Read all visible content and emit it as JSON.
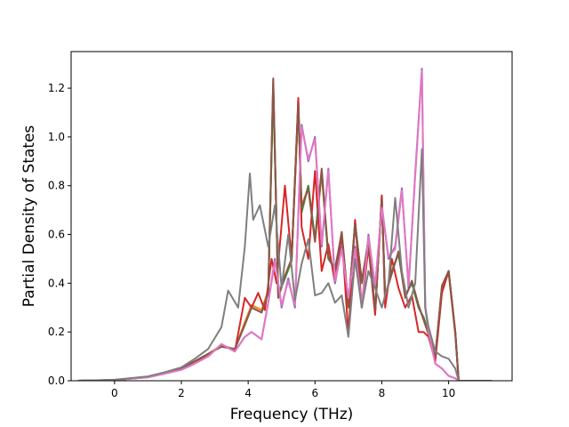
{
  "chart_data": {
    "type": "line",
    "xlabel": "Frequency (THz)",
    "ylabel": "Partial Density of States",
    "xlim": [
      -1.3,
      11.9
    ],
    "ylim": [
      0.0,
      1.35
    ],
    "xticks": [
      0,
      2,
      4,
      6,
      8,
      10
    ],
    "yticks": [
      0.0,
      0.2,
      0.4,
      0.6,
      0.8,
      1.0,
      1.2
    ],
    "xtick_labels": [
      "0",
      "2",
      "4",
      "6",
      "8",
      "10"
    ],
    "ytick_labels": [
      "0.0",
      "0.2",
      "0.4",
      "0.6",
      "0.8",
      "1.0",
      "1.2"
    ],
    "grid": false,
    "legend": "none",
    "series": [
      {
        "color": "#1f77b4",
        "x": [
          -1.1,
          0,
          1,
          1.5,
          2,
          2.4,
          2.8,
          3.2,
          3.6,
          3.9,
          4.1,
          4.4,
          4.6,
          4.75,
          4.9,
          5.1,
          5.3,
          5.5,
          5.6,
          5.8,
          6,
          6.2,
          6.4,
          6.6,
          6.8,
          7,
          7.2,
          7.4,
          7.6,
          7.8,
          8,
          8.1,
          8.3,
          8.5,
          8.7,
          8.9,
          9.1,
          9.25,
          9.4,
          9.6,
          9.8,
          10,
          10.2,
          10.3,
          11.3
        ],
        "y": [
          0,
          0.003,
          0.015,
          0.03,
          0.05,
          0.08,
          0.11,
          0.14,
          0.13,
          0.23,
          0.3,
          0.28,
          0.36,
          1.22,
          0.35,
          0.42,
          0.5,
          1.14,
          0.7,
          0.8,
          0.58,
          0.86,
          0.5,
          0.46,
          0.6,
          0.3,
          0.65,
          0.4,
          0.58,
          0.28,
          0.75,
          0.34,
          0.45,
          0.52,
          0.35,
          0.4,
          0.3,
          0.26,
          0.2,
          0.1,
          0.38,
          0.45,
          0.2,
          0,
          0
        ]
      },
      {
        "color": "#ff7f0e",
        "x": [
          -1.1,
          0,
          1,
          1.5,
          2,
          2.4,
          2.8,
          3.2,
          3.6,
          3.9,
          4.1,
          4.4,
          4.6,
          4.75,
          4.9,
          5.1,
          5.3,
          5.5,
          5.6,
          5.8,
          6,
          6.2,
          6.4,
          6.6,
          6.8,
          7,
          7.2,
          7.4,
          7.6,
          7.8,
          8,
          8.1,
          8.3,
          8.5,
          8.7,
          8.9,
          9.1,
          9.25,
          9.4,
          9.6,
          9.8,
          10,
          10.2,
          10.3,
          11.3
        ],
        "y": [
          0,
          0.003,
          0.015,
          0.03,
          0.05,
          0.08,
          0.11,
          0.145,
          0.13,
          0.24,
          0.31,
          0.29,
          0.37,
          1.23,
          0.34,
          0.43,
          0.5,
          1.12,
          0.72,
          0.79,
          0.57,
          0.85,
          0.51,
          0.45,
          0.61,
          0.31,
          0.64,
          0.41,
          0.57,
          0.29,
          0.74,
          0.35,
          0.44,
          0.53,
          0.34,
          0.41,
          0.31,
          0.25,
          0.19,
          0.1,
          0.39,
          0.44,
          0.19,
          0,
          0
        ]
      },
      {
        "color": "#2ca02c",
        "x": [
          -1.1,
          0,
          1,
          1.5,
          2,
          2.4,
          2.8,
          3.2,
          3.6,
          3.9,
          4.1,
          4.4,
          4.6,
          4.75,
          4.9,
          5.1,
          5.3,
          5.5,
          5.6,
          5.8,
          6,
          6.2,
          6.4,
          6.6,
          6.8,
          7,
          7.2,
          7.4,
          7.6,
          7.8,
          8,
          8.1,
          8.3,
          8.5,
          8.7,
          8.9,
          9.1,
          9.25,
          9.4,
          9.6,
          9.8,
          10,
          10.2,
          10.3,
          11.3
        ],
        "y": [
          0,
          0.003,
          0.016,
          0.031,
          0.05,
          0.08,
          0.11,
          0.14,
          0.13,
          0.23,
          0.3,
          0.28,
          0.36,
          1.2,
          0.36,
          0.42,
          0.49,
          1.15,
          0.69,
          0.8,
          0.58,
          0.86,
          0.5,
          0.46,
          0.6,
          0.3,
          0.65,
          0.4,
          0.58,
          0.28,
          0.76,
          0.34,
          0.45,
          0.52,
          0.35,
          0.4,
          0.3,
          0.26,
          0.2,
          0.1,
          0.38,
          0.45,
          0.2,
          0,
          0
        ]
      },
      {
        "color": "#d62728",
        "x": [
          -1.1,
          0,
          1,
          1.5,
          2,
          2.4,
          2.8,
          3.2,
          3.6,
          3.9,
          4.1,
          4.3,
          4.5,
          4.7,
          4.85,
          5.1,
          5.3,
          5.5,
          5.6,
          5.8,
          6,
          6.2,
          6.4,
          6.6,
          6.8,
          7,
          7.2,
          7.4,
          7.6,
          7.8,
          8,
          8.1,
          8.3,
          8.5,
          8.7,
          8.9,
          9.1,
          9.25,
          9.4,
          9.6,
          9.8,
          10,
          10.2,
          10.3,
          11.3
        ],
        "y": [
          0,
          0.003,
          0.015,
          0.03,
          0.05,
          0.08,
          0.1,
          0.15,
          0.12,
          0.34,
          0.3,
          0.36,
          0.29,
          0.5,
          0.4,
          0.8,
          0.5,
          1.16,
          0.63,
          0.5,
          0.86,
          0.45,
          0.56,
          0.4,
          0.6,
          0.19,
          0.66,
          0.3,
          0.55,
          0.27,
          0.76,
          0.3,
          0.5,
          0.38,
          0.3,
          0.35,
          0.2,
          0.2,
          0.18,
          0.08,
          0.36,
          0.45,
          0.2,
          0,
          0
        ]
      },
      {
        "color": "#9467bd",
        "x": [
          -1.1,
          0,
          1,
          1.5,
          2,
          2.4,
          2.8,
          3.2,
          3.6,
          3.9,
          4.1,
          4.4,
          4.6,
          4.8,
          5,
          5.2,
          5.4,
          5.6,
          5.8,
          6,
          6.2,
          6.4,
          6.6,
          6.8,
          7,
          7.2,
          7.4,
          7.6,
          7.8,
          8,
          8.2,
          8.4,
          8.6,
          8.8,
          9,
          9.2,
          9.3,
          9.4,
          9.6,
          9.8,
          10,
          10.2,
          10.3,
          11.3
        ],
        "y": [
          0,
          0.003,
          0.014,
          0.029,
          0.045,
          0.07,
          0.1,
          0.15,
          0.12,
          0.18,
          0.2,
          0.17,
          0.32,
          0.5,
          0.3,
          0.42,
          0.3,
          1.05,
          0.9,
          1.0,
          0.55,
          0.87,
          0.4,
          0.55,
          0.33,
          0.55,
          0.3,
          0.6,
          0.38,
          0.72,
          0.5,
          0.55,
          0.79,
          0.38,
          0.85,
          1.28,
          0.3,
          0.2,
          0.07,
          0.05,
          0.02,
          0.01,
          0,
          0
        ]
      },
      {
        "color": "#8c564b",
        "x": [
          -1.1,
          0,
          1,
          1.5,
          2,
          2.4,
          2.8,
          3.2,
          3.6,
          3.9,
          4.1,
          4.4,
          4.6,
          4.75,
          4.9,
          5.1,
          5.3,
          5.5,
          5.6,
          5.8,
          6,
          6.2,
          6.4,
          6.6,
          6.8,
          7,
          7.2,
          7.4,
          7.6,
          7.8,
          8,
          8.1,
          8.3,
          8.5,
          8.7,
          8.9,
          9.1,
          9.25,
          9.4,
          9.6,
          9.8,
          10,
          10.2,
          10.3,
          11.3
        ],
        "y": [
          0,
          0.003,
          0.015,
          0.03,
          0.05,
          0.08,
          0.11,
          0.14,
          0.13,
          0.23,
          0.3,
          0.28,
          0.36,
          1.24,
          0.34,
          0.43,
          0.5,
          1.13,
          0.71,
          0.79,
          0.57,
          0.87,
          0.51,
          0.45,
          0.61,
          0.31,
          0.64,
          0.41,
          0.57,
          0.29,
          0.74,
          0.35,
          0.44,
          0.53,
          0.34,
          0.41,
          0.31,
          0.25,
          0.19,
          0.1,
          0.39,
          0.45,
          0.19,
          0,
          0
        ]
      },
      {
        "color": "#e377c2",
        "x": [
          -1.1,
          0,
          1,
          1.5,
          2,
          2.4,
          2.8,
          3.2,
          3.6,
          3.9,
          4.1,
          4.4,
          4.6,
          4.8,
          5,
          5.2,
          5.4,
          5.6,
          5.8,
          6,
          6.2,
          6.4,
          6.6,
          6.8,
          7,
          7.2,
          7.4,
          7.6,
          7.8,
          8,
          8.2,
          8.4,
          8.6,
          8.8,
          9,
          9.2,
          9.3,
          9.4,
          9.6,
          9.8,
          10,
          10.2,
          10.3,
          11.3
        ],
        "y": [
          0,
          0.003,
          0.014,
          0.029,
          0.045,
          0.07,
          0.1,
          0.15,
          0.12,
          0.18,
          0.2,
          0.17,
          0.32,
          0.49,
          0.31,
          0.41,
          0.31,
          1.04,
          0.91,
          0.99,
          0.56,
          0.86,
          0.41,
          0.54,
          0.34,
          0.54,
          0.31,
          0.59,
          0.39,
          0.71,
          0.51,
          0.54,
          0.78,
          0.39,
          0.84,
          1.27,
          0.31,
          0.2,
          0.07,
          0.05,
          0.02,
          0.01,
          0,
          0
        ]
      },
      {
        "color": "#7f7f7f",
        "x": [
          -1.1,
          0,
          1,
          1.5,
          2,
          2.4,
          2.8,
          3.2,
          3.4,
          3.7,
          3.9,
          4.05,
          4.15,
          4.35,
          4.6,
          4.8,
          5.0,
          5.2,
          5.4,
          5.6,
          5.8,
          6,
          6.2,
          6.4,
          6.6,
          6.8,
          7,
          7.2,
          7.4,
          7.6,
          7.8,
          8,
          8.2,
          8.4,
          8.6,
          8.8,
          9,
          9.2,
          9.3,
          9.4,
          9.6,
          9.8,
          10,
          10.2,
          10.3,
          11.3
        ],
        "y": [
          0,
          0.004,
          0.018,
          0.035,
          0.055,
          0.09,
          0.13,
          0.22,
          0.37,
          0.3,
          0.55,
          0.85,
          0.66,
          0.72,
          0.55,
          0.72,
          0.38,
          0.6,
          0.33,
          0.48,
          0.58,
          0.35,
          0.36,
          0.4,
          0.32,
          0.35,
          0.18,
          0.5,
          0.3,
          0.45,
          0.38,
          0.3,
          0.4,
          0.75,
          0.45,
          0.3,
          0.4,
          0.95,
          0.3,
          0.22,
          0.12,
          0.1,
          0.09,
          0.05,
          0,
          0
        ]
      }
    ]
  }
}
